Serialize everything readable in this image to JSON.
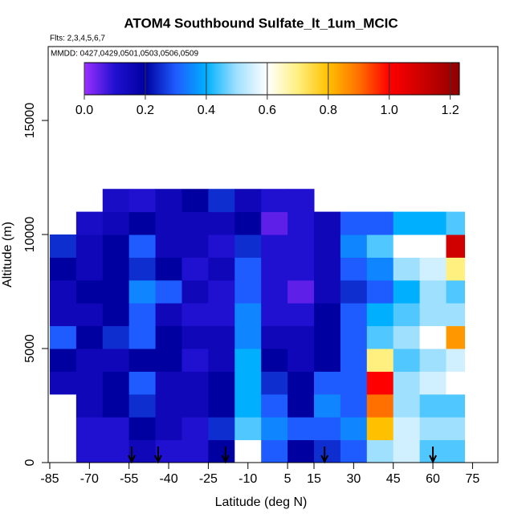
{
  "chart_data": {
    "type": "heatmap",
    "title": "ATOM4 Southbound Sulfate_lt_1um_MCIC",
    "subtitle": "Flts: 2,3,4,5,6,7",
    "annotation": "MMDD: 0427,0429,0501,0503,0506,0509",
    "x_label": "Latitude (deg N)",
    "y_label": "Altitude (m)",
    "xlim": [
      -85.6,
      84.6
    ],
    "ylim": [
      0,
      18240
    ],
    "xticks": [
      -85,
      -70,
      -55,
      -40,
      -25,
      -10,
      5,
      15,
      30,
      45,
      60,
      75
    ],
    "yticks": [
      0,
      5000,
      10000,
      15000
    ],
    "lat_edges": [
      -85,
      -75,
      -65,
      -55,
      -45,
      -35,
      -25,
      -15,
      -5,
      5,
      15,
      25,
      35,
      45,
      55,
      65,
      72
    ],
    "alt_edges": [
      0,
      1000,
      2000,
      3000,
      4000,
      5000,
      6000,
      7000,
      8000,
      9000,
      10000,
      11000,
      12000
    ],
    "values": [
      [
        null,
        null,
        null,
        0.15,
        0.2,
        0.3,
        0.15,
        0.15,
        0.2,
        0.25,
        null,
        null
      ],
      [
        0.1,
        0.1,
        0.15,
        0.15,
        0.15,
        0.2,
        0.15,
        0.2,
        0.15,
        0.15,
        0.12,
        null
      ],
      [
        0.1,
        0.1,
        0.2,
        0.2,
        0.15,
        0.25,
        0.2,
        0.2,
        0.2,
        0.2,
        0.15,
        0.12
      ],
      [
        0.15,
        0.2,
        0.25,
        0.3,
        0.2,
        0.3,
        0.3,
        0.35,
        0.25,
        0.3,
        0.2,
        0.1
      ],
      [
        0.1,
        0.15,
        0.15,
        0.15,
        0.2,
        0.2,
        0.15,
        0.3,
        0.2,
        0.15,
        0.15,
        0.15
      ],
      [
        0.1,
        0.1,
        0.15,
        0.15,
        0.1,
        0.15,
        0.1,
        0.15,
        0.1,
        0.15,
        0.15,
        0.2
      ],
      [
        0.2,
        0.25,
        0.2,
        0.2,
        0.15,
        0.15,
        0.1,
        0.1,
        0.15,
        0.1,
        0.15,
        0.25
      ],
      [
        0.6,
        0.45,
        0.4,
        0.4,
        0.4,
        0.35,
        0.35,
        0.3,
        0.3,
        0.25,
        0.2,
        0.15
      ],
      [
        0.3,
        0.35,
        0.3,
        0.25,
        0.2,
        0.15,
        0.1,
        0.1,
        0.1,
        0.1,
        0.05,
        0.1
      ],
      [
        0.2,
        0.3,
        0.2,
        0.2,
        0.15,
        0.15,
        0.1,
        0.05,
        0.1,
        0.1,
        0.1,
        0.1
      ],
      [
        0.25,
        0.3,
        0.35,
        0.3,
        0.2,
        0.2,
        0.2,
        0.15,
        0.15,
        0.15,
        0.15,
        null
      ],
      [
        0.3,
        0.35,
        0.3,
        0.3,
        0.3,
        0.3,
        0.3,
        0.25,
        0.3,
        0.35,
        0.3,
        null
      ],
      [
        0.5,
        0.8,
        0.9,
        1.0,
        0.7,
        0.45,
        0.4,
        0.3,
        0.35,
        0.45,
        0.3,
        null
      ],
      [
        0.55,
        0.55,
        0.5,
        0.5,
        0.45,
        0.5,
        0.45,
        0.4,
        0.5,
        0.6,
        0.4,
        null
      ],
      [
        0.45,
        0.5,
        0.45,
        0.55,
        0.5,
        0.6,
        0.5,
        0.5,
        0.55,
        0.6,
        0.4,
        null
      ],
      [
        0.45,
        0.5,
        0.45,
        0.6,
        0.55,
        0.85,
        0.5,
        0.45,
        0.7,
        1.1,
        0.45,
        null
      ]
    ],
    "clim": [
      0,
      1.23
    ],
    "colorbar_ticks": [
      {
        "value": 0,
        "label": "0.0"
      },
      0.2,
      0.4,
      0.6,
      0.8,
      {
        "value": 1,
        "label": "1.0"
      },
      1.2
    ],
    "colormap": [
      [
        0,
        "#9b30ff"
      ],
      [
        0.1,
        "#2010d0"
      ],
      [
        0.2,
        "#0000a0"
      ],
      [
        0.3,
        "#1e5cff"
      ],
      [
        0.4,
        "#00b0ff"
      ],
      [
        0.5,
        "#a0e0ff"
      ],
      [
        0.6,
        "#ffffff"
      ],
      [
        0.7,
        "#fff080"
      ],
      [
        0.8,
        "#ffc000"
      ],
      [
        0.9,
        "#ff7000"
      ],
      [
        1.0,
        "#ff0000"
      ],
      [
        1.1,
        "#d00000"
      ],
      [
        1.23,
        "#900000"
      ]
    ],
    "flight_markers": [
      -54,
      -44,
      -18.5,
      19,
      60
    ]
  }
}
